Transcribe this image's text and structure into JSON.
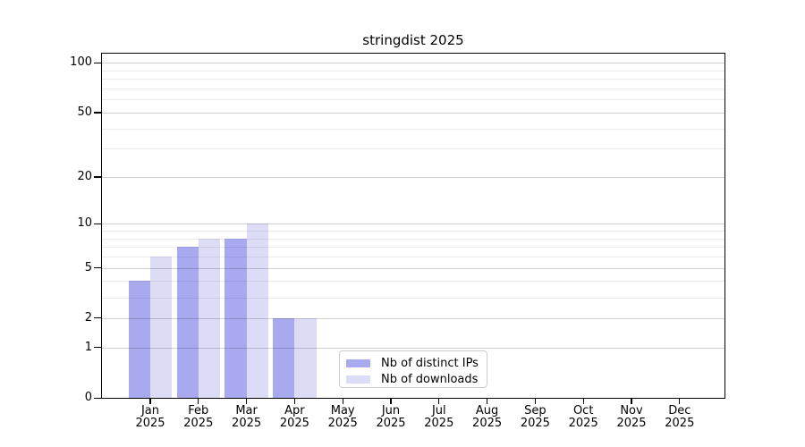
{
  "title": "stringdist 2025",
  "legend": {
    "items": [
      {
        "label": "Nb of distinct IPs"
      },
      {
        "label": "Nb of downloads"
      }
    ]
  },
  "chart_data": {
    "type": "bar",
    "title": "stringdist 2025",
    "categories": [
      {
        "month": "Jan",
        "year": "2025"
      },
      {
        "month": "Feb",
        "year": "2025"
      },
      {
        "month": "Mar",
        "year": "2025"
      },
      {
        "month": "Apr",
        "year": "2025"
      },
      {
        "month": "May",
        "year": "2025"
      },
      {
        "month": "Jun",
        "year": "2025"
      },
      {
        "month": "Jul",
        "year": "2025"
      },
      {
        "month": "Aug",
        "year": "2025"
      },
      {
        "month": "Sep",
        "year": "2025"
      },
      {
        "month": "Oct",
        "year": "2025"
      },
      {
        "month": "Nov",
        "year": "2025"
      },
      {
        "month": "Dec",
        "year": "2025"
      }
    ],
    "series": [
      {
        "name": "Nb of distinct IPs",
        "color": "#a9a9f0",
        "values": [
          4,
          7,
          8,
          2,
          null,
          null,
          null,
          null,
          null,
          null,
          null,
          null
        ]
      },
      {
        "name": "Nb of downloads",
        "color": "#dcdcf6",
        "values": [
          6,
          8,
          10,
          2,
          null,
          null,
          null,
          null,
          null,
          null,
          null,
          null
        ]
      }
    ],
    "y_scale": "log10(1+x)",
    "y_major_ticks": [
      0,
      1,
      2,
      5,
      10,
      20,
      50,
      100
    ],
    "y_minor_gridlines": [
      3,
      4,
      6,
      7,
      8,
      9,
      30,
      40,
      60,
      70,
      80,
      90
    ],
    "ylim": [
      0,
      115
    ],
    "grid": "horizontal-only",
    "legend_position": "lower-center-inside"
  }
}
